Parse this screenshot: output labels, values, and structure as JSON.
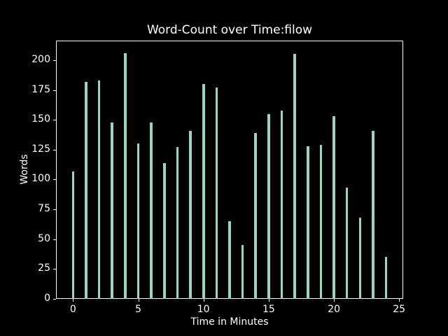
{
  "figure": {
    "background_color": "#000000",
    "text_color": "#ffffff",
    "spine_color": "#ffffff"
  },
  "chart_data": {
    "type": "bar",
    "title": "Word-Count over Time:filow",
    "xlabel": "Time in Minutes",
    "ylabel": "Words",
    "x": [
      0,
      1,
      2,
      3,
      4,
      5,
      6,
      7,
      8,
      9,
      10,
      11,
      12,
      13,
      14,
      15,
      16,
      17,
      18,
      19,
      20,
      21,
      22,
      23,
      24
    ],
    "values": [
      107,
      182,
      183,
      148,
      206,
      130,
      148,
      114,
      127,
      141,
      180,
      177,
      65,
      45,
      139,
      155,
      158,
      205,
      128,
      129,
      153,
      93,
      68,
      141,
      35
    ],
    "bar_color": "#99d5c5",
    "bar_width_data_units": 0.2,
    "xticks": [
      0,
      5,
      10,
      15,
      20,
      25
    ],
    "yticks": [
      0,
      25,
      50,
      75,
      100,
      125,
      150,
      175,
      200
    ],
    "xlim": [
      -1.31,
      25.31
    ],
    "ylim": [
      0,
      216.3
    ],
    "grid": false,
    "legend": null
  }
}
